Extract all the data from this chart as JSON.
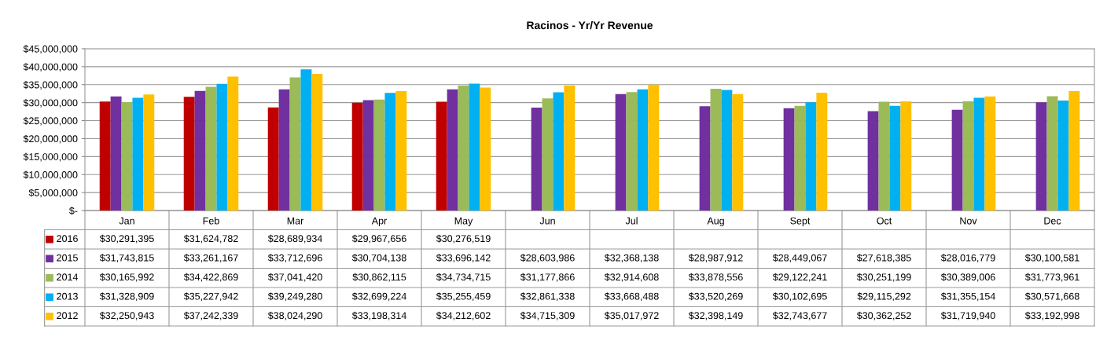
{
  "chart_data": {
    "type": "bar",
    "title": "Racinos - Yr/Yr Revenue",
    "categories": [
      "Jan",
      "Feb",
      "Mar",
      "Apr",
      "May",
      "Jun",
      "Jul",
      "Aug",
      "Sept",
      "Oct",
      "Nov",
      "Dec"
    ],
    "series": [
      {
        "name": "2016",
        "color": "#c00000",
        "values": [
          30291395,
          31624782,
          28689934,
          29967656,
          30276519,
          null,
          null,
          null,
          null,
          null,
          null,
          null
        ],
        "value_labels": [
          "$30,291,395",
          "$31,624,782",
          "$28,689,934",
          "$29,967,656",
          "$30,276,519",
          null,
          null,
          null,
          null,
          null,
          null,
          null
        ]
      },
      {
        "name": "2015",
        "color": "#7030a0",
        "values": [
          31743815,
          33261167,
          33712696,
          30704138,
          33696142,
          28603986,
          32368138,
          28987912,
          28449067,
          27618385,
          28016779,
          30100581
        ],
        "value_labels": [
          "$31,743,815",
          "$33,261,167",
          "$33,712,696",
          "$30,704,138",
          "$33,696,142",
          "$28,603,986",
          "$32,368,138",
          "$28,987,912",
          "$28,449,067",
          "$27,618,385",
          "$28,016,779",
          "$30,100,581"
        ]
      },
      {
        "name": "2014",
        "color": "#9bbb59",
        "values": [
          30165992,
          34422869,
          37041420,
          30862115,
          34734715,
          31177866,
          32914608,
          33878556,
          29122241,
          30251199,
          30389006,
          31773961
        ],
        "value_labels": [
          "$30,165,992",
          "$34,422,869",
          "$37,041,420",
          "$30,862,115",
          "$34,734,715",
          "$31,177,866",
          "$32,914,608",
          "$33,878,556",
          "$29,122,241",
          "$30,251,199",
          "$30,389,006",
          "$31,773,961"
        ]
      },
      {
        "name": "2013",
        "color": "#00b0f0",
        "values": [
          31328909,
          35227942,
          39249280,
          32699224,
          35255459,
          32861338,
          33668488,
          33520269,
          30102695,
          29115292,
          31355154,
          30571668
        ],
        "value_labels": [
          "$31,328,909",
          "$35,227,942",
          "$39,249,280",
          "$32,699,224",
          "$35,255,459",
          "$32,861,338",
          "$33,668,488",
          "$33,520,269",
          "$30,102,695",
          "$29,115,292",
          "$31,355,154",
          "$30,571,668"
        ]
      },
      {
        "name": "2012",
        "color": "#ffc000",
        "values": [
          32250943,
          37242339,
          38024290,
          33198314,
          34212602,
          34715309,
          35017972,
          32398149,
          32743677,
          30362252,
          31719940,
          33192998
        ],
        "value_labels": [
          "$32,250,943",
          "$37,242,339",
          "$38,024,290",
          "$33,198,314",
          "$34,212,602",
          "$34,715,309",
          "$35,017,972",
          "$32,398,149",
          "$32,743,677",
          "$30,362,252",
          "$31,719,940",
          "$33,192,998"
        ]
      }
    ],
    "ylim": [
      0,
      45000000
    ],
    "yticks": [
      {
        "value": 0,
        "label": "$-"
      },
      {
        "value": 5000000,
        "label": "$5,000,000"
      },
      {
        "value": 10000000,
        "label": "$10,000,000"
      },
      {
        "value": 15000000,
        "label": "$15,000,000"
      },
      {
        "value": 20000000,
        "label": "$20,000,000"
      },
      {
        "value": 25000000,
        "label": "$25,000,000"
      },
      {
        "value": 30000000,
        "label": "$30,000,000"
      },
      {
        "value": 35000000,
        "label": "$35,000,000"
      },
      {
        "value": 40000000,
        "label": "$40,000,000"
      },
      {
        "value": 45000000,
        "label": "$45,000,000"
      }
    ],
    "grid": "y",
    "legend": "bottom left"
  }
}
